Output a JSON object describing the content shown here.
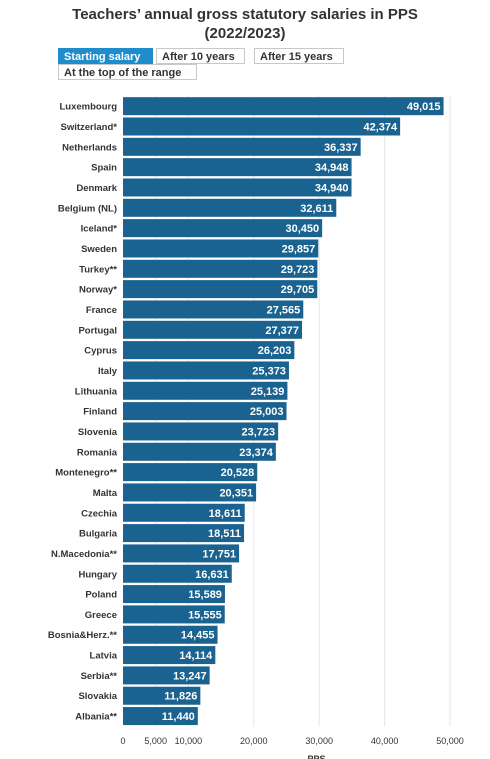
{
  "title_line1": "Teachers’ annual gross statutory salaries in PPS",
  "title_line2": "(2022/2023)",
  "tabs": [
    {
      "label": "Starting salary",
      "active": true
    },
    {
      "label": "After 10 years",
      "active": false
    },
    {
      "label": "After 15 years",
      "active": false
    },
    {
      "label": "At the top of the range",
      "active": false
    }
  ],
  "colors": {
    "bar": "#1a628f",
    "active_tab": "#1f8ccc"
  },
  "chart_data": {
    "type": "bar",
    "orientation": "horizontal",
    "categories": [
      "Luxembourg",
      "Switzerland*",
      "Netherlands",
      "Spain",
      "Denmark",
      "Belgium (NL)",
      "Iceland*",
      "Sweden",
      "Turkey**",
      "Norway*",
      "France",
      "Portugal",
      "Cyprus",
      "Italy",
      "Lithuania",
      "Finland",
      "Slovenia",
      "Romania",
      "Montenegro**",
      "Malta",
      "Czechia",
      "Bulgaria",
      "N.Macedonia**",
      "Hungary",
      "Poland",
      "Greece",
      "Bosnia&Herz.**",
      "Latvia",
      "Serbia**",
      "Slovakia",
      "Albania**"
    ],
    "values": [
      49015,
      42374,
      36337,
      34948,
      34940,
      32611,
      30450,
      29857,
      29723,
      29705,
      27565,
      27377,
      26203,
      25373,
      25139,
      25003,
      23723,
      23374,
      20528,
      20351,
      18611,
      18511,
      17751,
      16631,
      15589,
      15555,
      14455,
      14114,
      13247,
      11826,
      11440
    ],
    "value_labels": [
      "49,015",
      "42,374",
      "36,337",
      "34,948",
      "34,940",
      "32,611",
      "30,450",
      "29,857",
      "29,723",
      "29,705",
      "27,565",
      "27,377",
      "26,203",
      "25,373",
      "25,139",
      "25,003",
      "23,723",
      "23,374",
      "20,528",
      "20,351",
      "18,611",
      "18,511",
      "17,751",
      "16,631",
      "15,589",
      "15,555",
      "14,455",
      "14,114",
      "13,247",
      "11,826",
      "11,440"
    ],
    "xticks": [
      0,
      5000,
      10000,
      20000,
      30000,
      40000,
      50000
    ],
    "xtick_labels": [
      "0",
      "5,000",
      "10,000",
      "20,000",
      "30,000",
      "40,000",
      "50,000"
    ],
    "xlabel": "PPS",
    "xlim": [
      0,
      50000
    ]
  }
}
